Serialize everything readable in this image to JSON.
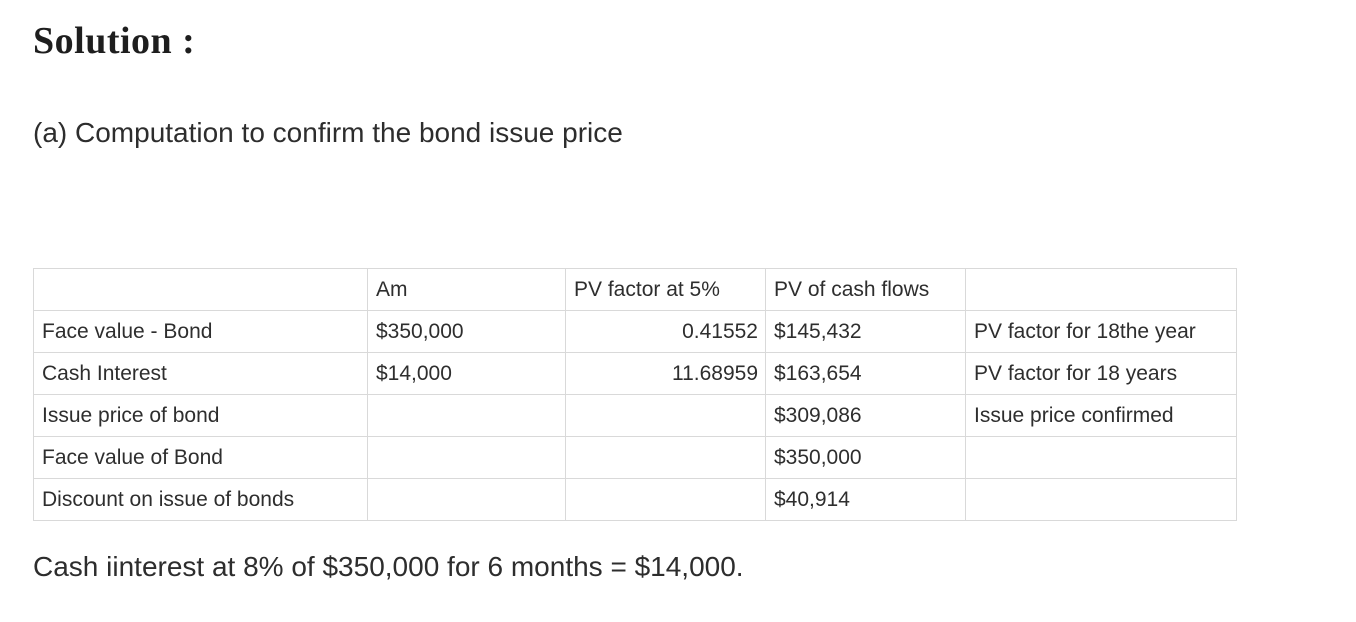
{
  "page": {
    "title": "Solution :",
    "section_heading": "(a) Computation to confirm the bond issue price",
    "footnote": "Cash iinterest at 8% of $350,000 for 6 months = $14,000."
  },
  "table": {
    "columns": [
      "",
      "Am",
      "PV factor at 5%",
      "PV of cash flows",
      ""
    ],
    "rows": [
      {
        "label": "Face value - Bond",
        "am": "$350,000",
        "pv_factor": "0.41552",
        "pv_cash_flows": "$145,432",
        "note": "PV factor for 18the year"
      },
      {
        "label": "Cash Interest",
        "am": "$14,000",
        "pv_factor": "11.68959",
        "pv_cash_flows": "$163,654",
        "note": "PV factor for 18 years"
      },
      {
        "label": "Issue price of bond",
        "am": "",
        "pv_factor": "",
        "pv_cash_flows": "$309,086",
        "note": "Issue price confirmed"
      },
      {
        "label": "Face value of Bond",
        "am": "",
        "pv_factor": "",
        "pv_cash_flows": "$350,000",
        "note": ""
      },
      {
        "label": "Discount on issue of bonds",
        "am": "",
        "pv_factor": "",
        "pv_cash_flows": "$40,914",
        "note": ""
      }
    ]
  },
  "colors": {
    "text": "#2e2e2e",
    "title_text": "#1e1e1e",
    "table_border": "#d9d9d9",
    "background": "#ffffff"
  }
}
